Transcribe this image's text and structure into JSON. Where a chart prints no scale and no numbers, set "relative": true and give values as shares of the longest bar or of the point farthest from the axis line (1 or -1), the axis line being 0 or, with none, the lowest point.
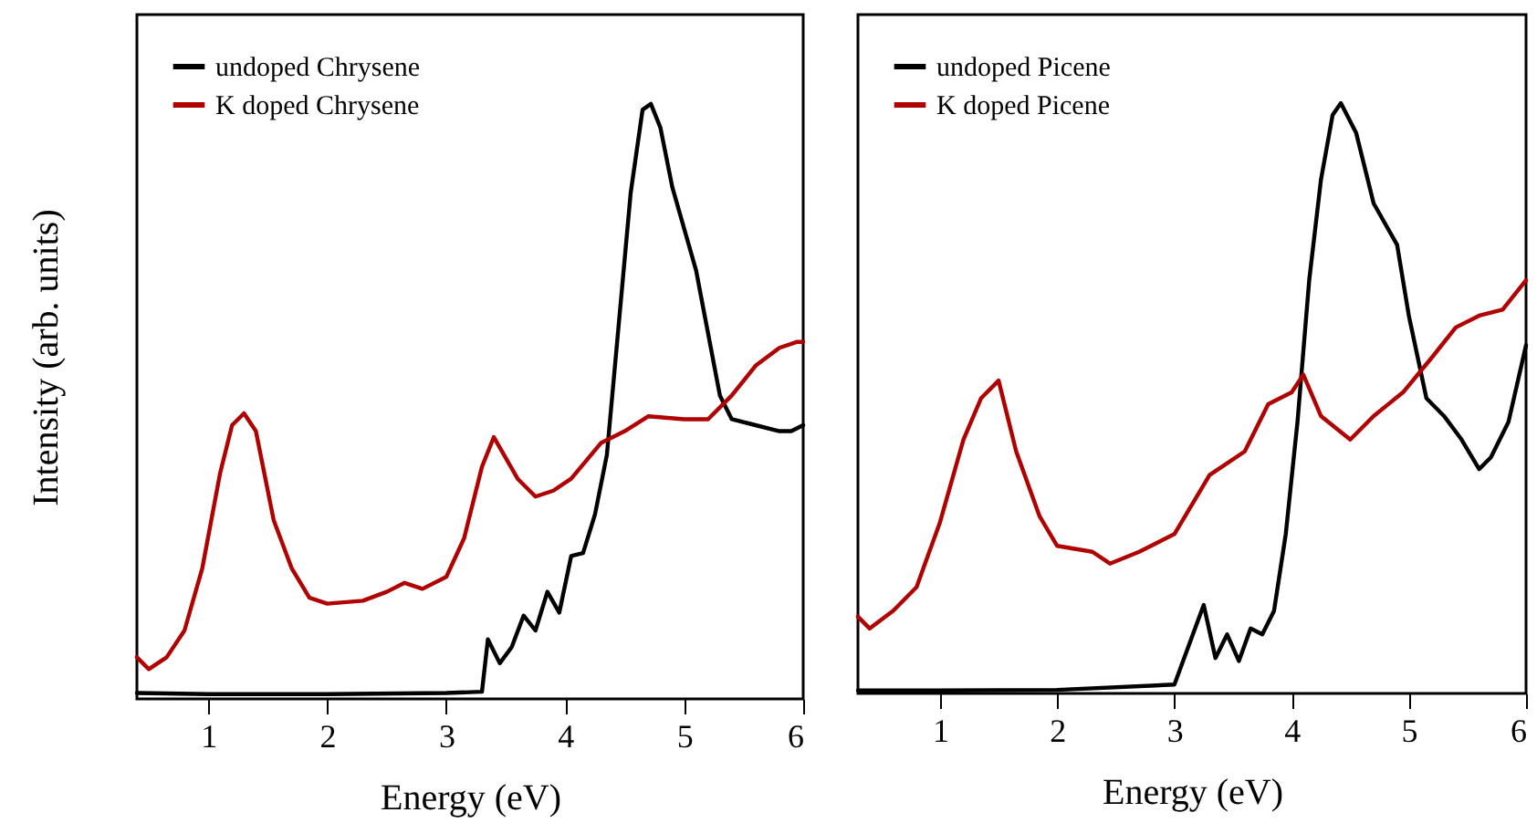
{
  "chart_data": [
    {
      "type": "line",
      "xlabel": "Energy  (eV)",
      "ylabel": "Intensity  (arb. units)",
      "relative": true,
      "xlim": [
        0.4,
        6
      ],
      "xticks": [
        1,
        2,
        3,
        4,
        5,
        6
      ],
      "legend": "top left",
      "line_style": "solid",
      "marker": "none",
      "series": [
        {
          "name": "undoped Chrysene",
          "color": "#000000",
          "x": [
            0.4,
            1.0,
            2.0,
            3.0,
            3.3,
            3.35,
            3.45,
            3.55,
            3.65,
            3.75,
            3.85,
            3.95,
            4.05,
            4.15,
            4.25,
            4.35,
            4.45,
            4.55,
            4.65,
            4.72,
            4.8,
            4.9,
            5.1,
            5.3,
            5.4,
            5.6,
            5.8,
            5.9,
            6.0
          ],
          "values": [
            0.01,
            0.008,
            0.008,
            0.01,
            0.012,
            0.1,
            0.06,
            0.087,
            0.14,
            0.115,
            0.18,
            0.145,
            0.24,
            0.245,
            0.31,
            0.41,
            0.63,
            0.85,
            0.99,
            1.0,
            0.96,
            0.86,
            0.72,
            0.51,
            0.47,
            0.46,
            0.45,
            0.45,
            0.46
          ]
        },
        {
          "name": "K doped Chrysene",
          "color": "#b00000",
          "x": [
            0.4,
            0.5,
            0.65,
            0.8,
            0.95,
            1.1,
            1.2,
            1.3,
            1.4,
            1.55,
            1.7,
            1.85,
            2.0,
            2.3,
            2.5,
            2.65,
            2.8,
            3.0,
            3.15,
            3.3,
            3.4,
            3.6,
            3.75,
            3.9,
            4.05,
            4.3,
            4.5,
            4.7,
            5.0,
            5.2,
            5.4,
            5.6,
            5.8,
            5.95,
            6.0
          ],
          "values": [
            0.07,
            0.05,
            0.07,
            0.115,
            0.22,
            0.38,
            0.46,
            0.48,
            0.45,
            0.3,
            0.22,
            0.17,
            0.16,
            0.165,
            0.18,
            0.195,
            0.185,
            0.205,
            0.27,
            0.39,
            0.44,
            0.37,
            0.34,
            0.35,
            0.37,
            0.43,
            0.45,
            0.475,
            0.47,
            0.47,
            0.51,
            0.56,
            0.59,
            0.6,
            0.6
          ]
        }
      ]
    },
    {
      "type": "line",
      "xlabel": "Energy  (eV)",
      "relative": true,
      "xlim": [
        0.3,
        6
      ],
      "xticks": [
        1,
        2,
        3,
        4,
        5,
        6
      ],
      "legend": "top left",
      "line_style": "solid",
      "marker": "none",
      "series": [
        {
          "name": "undoped Picene",
          "color": "#000000",
          "x": [
            0.3,
            1.0,
            2.0,
            3.0,
            3.25,
            3.35,
            3.45,
            3.55,
            3.65,
            3.75,
            3.85,
            3.95,
            4.05,
            4.15,
            4.25,
            4.35,
            4.42,
            4.55,
            4.7,
            4.9,
            5.0,
            5.15,
            5.3,
            5.45,
            5.6,
            5.7,
            5.85,
            6.0
          ],
          "values": [
            0.005,
            0.005,
            0.006,
            0.015,
            0.15,
            0.06,
            0.1,
            0.055,
            0.11,
            0.1,
            0.14,
            0.27,
            0.46,
            0.7,
            0.87,
            0.98,
            1.0,
            0.95,
            0.83,
            0.76,
            0.64,
            0.5,
            0.47,
            0.43,
            0.38,
            0.4,
            0.46,
            0.59
          ]
        },
        {
          "name": "K doped Picene",
          "color": "#b00000",
          "x": [
            0.3,
            0.4,
            0.6,
            0.8,
            1.0,
            1.2,
            1.35,
            1.5,
            1.65,
            1.85,
            2.0,
            2.3,
            2.45,
            2.7,
            2.9,
            3.0,
            3.3,
            3.6,
            3.8,
            4.0,
            4.1,
            4.25,
            4.5,
            4.7,
            4.95,
            5.2,
            5.4,
            5.6,
            5.8,
            6.0
          ],
          "values": [
            0.13,
            0.11,
            0.14,
            0.18,
            0.29,
            0.43,
            0.5,
            0.53,
            0.41,
            0.3,
            0.25,
            0.24,
            0.22,
            0.24,
            0.26,
            0.27,
            0.37,
            0.41,
            0.49,
            0.51,
            0.54,
            0.47,
            0.43,
            0.47,
            0.51,
            0.57,
            0.62,
            0.64,
            0.65,
            0.7
          ]
        }
      ]
    }
  ]
}
